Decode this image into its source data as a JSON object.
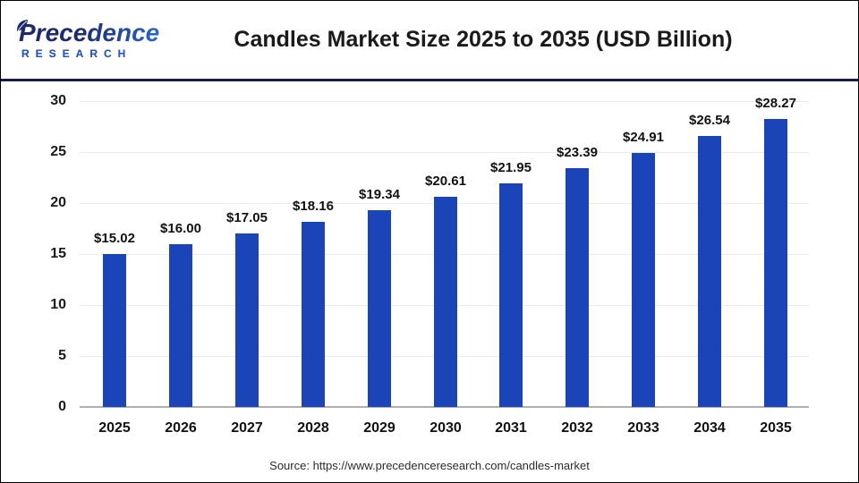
{
  "header": {
    "logo_line1": "Precedence",
    "logo_line2": "RESEARCH",
    "title": "Candles Market Size 2025 to 2035 (USD Billion)"
  },
  "footer": {
    "source_text": "Source: https://www.precedenceresearch.com/candles-market"
  },
  "colors": {
    "bar": "#1b44b8",
    "divider": "#191b4d",
    "logo_navy": "#1d2b6d",
    "logo_blue": "#2e6fd6",
    "grid": "#ebebeb",
    "axis": "#b0b0b0",
    "text": "#111111"
  },
  "chart_data": {
    "type": "bar",
    "title": "Candles Market Size 2025 to 2035 (USD Billion)",
    "categories": [
      "2025",
      "2026",
      "2027",
      "2028",
      "2029",
      "2030",
      "2031",
      "2032",
      "2033",
      "2034",
      "2035"
    ],
    "values": [
      15.02,
      16.0,
      17.05,
      18.16,
      19.34,
      20.61,
      21.95,
      23.39,
      24.91,
      26.54,
      28.27
    ],
    "bar_labels": [
      "$15.02",
      "$16.00",
      "$17.05",
      "$18.16",
      "$19.34",
      "$20.61",
      "$21.95",
      "$23.39",
      "$24.91",
      "$26.54",
      "$28.27"
    ],
    "xlabel": "",
    "ylabel": "",
    "ylim": [
      0,
      30
    ],
    "yticks": [
      0,
      5,
      10,
      15,
      20,
      25,
      30
    ],
    "grid": true,
    "legend": false,
    "bar_color": "#1b44b8"
  }
}
